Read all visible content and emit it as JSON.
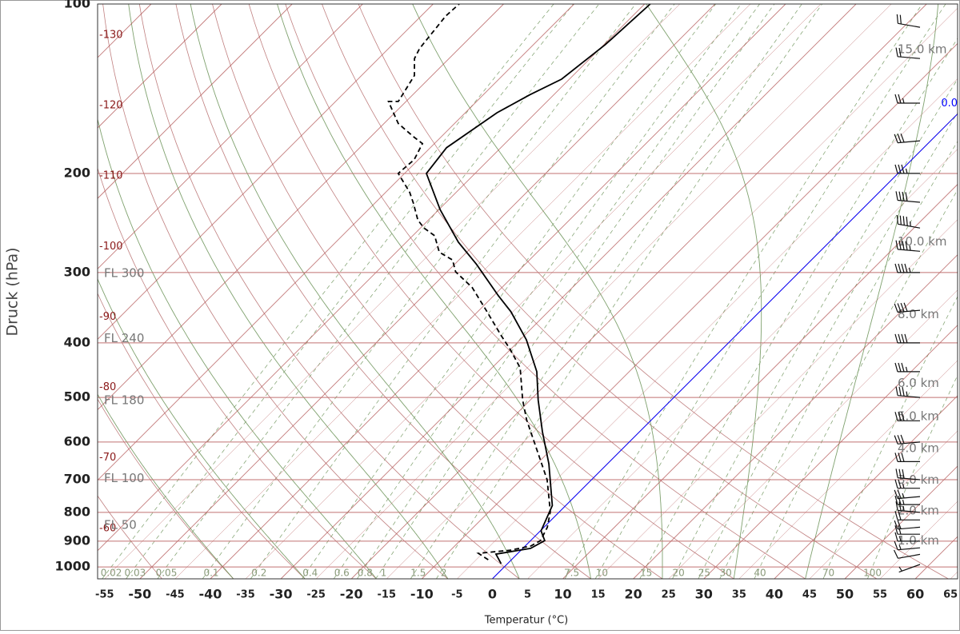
{
  "chart_data": {
    "type": "skewt",
    "ylabel": "Druck (hPa)",
    "xlabel": "Temperatur (°C)",
    "log_y": true,
    "ylim": [
      1050,
      100
    ],
    "yticks": [
      100,
      200,
      300,
      400,
      500,
      600,
      700,
      800,
      900,
      1000
    ],
    "xlim": [
      -56,
      66
    ],
    "xticks": [
      -55,
      -50,
      -45,
      -40,
      -35,
      -30,
      -25,
      -20,
      -15,
      -10,
      -5,
      0,
      5,
      10,
      15,
      20,
      25,
      30,
      35,
      40,
      45,
      50,
      55,
      60,
      65
    ],
    "isotherm_labels": [
      -130,
      -120,
      -110,
      -100,
      -90,
      -80,
      -70,
      -60
    ],
    "isotherm_color": "#8b1a1a",
    "zero_isotherm": {
      "value": 0,
      "label": "0.0",
      "color": "#0000ff"
    },
    "flight_levels": [
      {
        "value": 300,
        "label": "FL 300"
      },
      {
        "value": 240,
        "label": "FL 240"
      },
      {
        "value": 180,
        "label": "FL 180"
      },
      {
        "value": 100,
        "label": "FL 100"
      },
      {
        "value": 50,
        "label": "FL 50"
      }
    ],
    "heights": [
      {
        "value": 15,
        "label": "15.0 km"
      },
      {
        "value": 10,
        "label": "10.0 km"
      },
      {
        "value": 8,
        "label": "8.0 km"
      },
      {
        "value": 6,
        "label": "6.0 km"
      },
      {
        "value": 5,
        "label": "5.0 km"
      },
      {
        "value": 4,
        "label": "4.0 km"
      },
      {
        "value": 3,
        "label": "3.0 km"
      },
      {
        "value": 2,
        "label": "2.0 km"
      },
      {
        "value": 1,
        "label": "1.0 km"
      }
    ],
    "mixing_ratios": [
      0.02,
      0.03,
      0.05,
      0.1,
      0.2,
      0.4,
      0.6,
      0.8,
      1,
      1.5,
      2,
      7.5,
      10,
      15,
      20,
      25,
      30,
      40,
      70,
      100
    ],
    "series": [
      {
        "color": "#000000",
        "line_style": "solid",
        "pressure": [
          987,
          949,
          927,
          898,
          863,
          778,
          656,
          575,
          505,
          450,
          395,
          352,
          330,
          290,
          265,
          232,
          200,
          180,
          156,
          145,
          136,
          118,
          100
        ],
        "temperature": [
          -0.9,
          -3,
          1.1,
          2,
          0.1,
          -1.9,
          -8.3,
          -13.8,
          -18.9,
          -23.1,
          -29.1,
          -35.3,
          -39.3,
          -46.9,
          -52.6,
          -59.8,
          -66.9,
          -67.7,
          -65.5,
          -63.4,
          -61.1,
          -59.8,
          -59.2
        ]
      },
      {
        "color": "#000000",
        "line_style": "dashed",
        "pressure": [
          971,
          946,
          934,
          918,
          898,
          851,
          798,
          700,
          614,
          548,
          505,
          443,
          411,
          388,
          350,
          319,
          299,
          285,
          276,
          258,
          250,
          242,
          226,
          216,
          200,
          189,
          177,
          172,
          163,
          156,
          149,
          149,
          134,
          125,
          120,
          105,
          100
        ],
        "temperature": [
          -3.3,
          -5.6,
          -1.5,
          0.8,
          1.4,
          0.5,
          -1.3,
          -6.3,
          -12.4,
          -17.7,
          -21.1,
          -26,
          -30,
          -33.3,
          -39,
          -44.2,
          -48.8,
          -50.9,
          -53.9,
          -56.9,
          -59.5,
          -61.5,
          -64.5,
          -66.6,
          -70.9,
          -70.6,
          -71.7,
          -74,
          -78,
          -80.2,
          -82.5,
          -81.1,
          -82.5,
          -84.9,
          -85.6,
          -86.5,
          -86.3
        ]
      }
    ],
    "wind": {
      "pressure": [
        990,
        950,
        925,
        900,
        875,
        850,
        825,
        800,
        775,
        750,
        725,
        700,
        650,
        600,
        550,
        500,
        450,
        400,
        350,
        300,
        275,
        250,
        225,
        200,
        175,
        150,
        125,
        110
      ],
      "speed": [
        5,
        10,
        15,
        15,
        20,
        20,
        20,
        25,
        25,
        25,
        25,
        30,
        30,
        30,
        30,
        35,
        35,
        40,
        40,
        45,
        45,
        45,
        40,
        35,
        30,
        25,
        20,
        20
      ],
      "direction": [
        250,
        260,
        265,
        270,
        270,
        265,
        270,
        275,
        270,
        265,
        270,
        275,
        270,
        265,
        270,
        275,
        270,
        270,
        265,
        270,
        275,
        280,
        275,
        270,
        265,
        270,
        275,
        280
      ]
    }
  }
}
